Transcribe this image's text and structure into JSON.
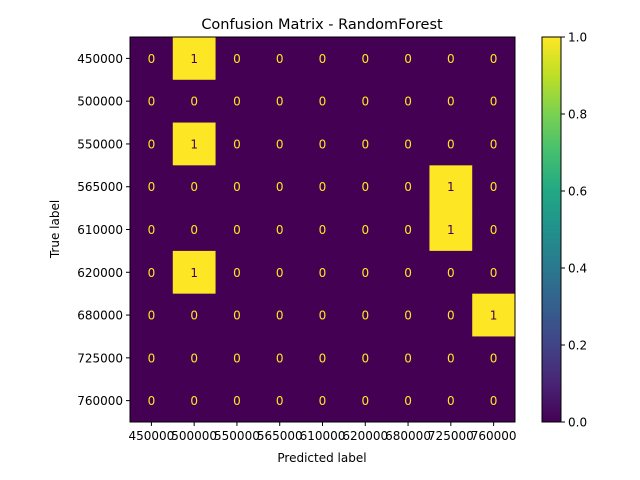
{
  "chart_data": {
    "type": "heatmap",
    "title": "Confusion Matrix - RandomForest",
    "xlabel": "Predicted label",
    "ylabel": "True label",
    "row_labels": [
      "450000",
      "500000",
      "550000",
      "565000",
      "610000",
      "620000",
      "680000",
      "725000",
      "760000"
    ],
    "col_labels": [
      "450000",
      "500000",
      "550000",
      "565000",
      "610000",
      "620000",
      "680000",
      "725000",
      "760000"
    ],
    "matrix": [
      [
        0,
        1,
        0,
        0,
        0,
        0,
        0,
        0,
        0
      ],
      [
        0,
        0,
        0,
        0,
        0,
        0,
        0,
        0,
        0
      ],
      [
        0,
        1,
        0,
        0,
        0,
        0,
        0,
        0,
        0
      ],
      [
        0,
        0,
        0,
        0,
        0,
        0,
        0,
        1,
        0
      ],
      [
        0,
        0,
        0,
        0,
        0,
        0,
        0,
        1,
        0
      ],
      [
        0,
        1,
        0,
        0,
        0,
        0,
        0,
        0,
        0
      ],
      [
        0,
        0,
        0,
        0,
        0,
        0,
        0,
        0,
        1
      ],
      [
        0,
        0,
        0,
        0,
        0,
        0,
        0,
        0,
        0
      ],
      [
        0,
        0,
        0,
        0,
        0,
        0,
        0,
        0,
        0
      ]
    ],
    "colorbar": {
      "range": [
        0,
        1
      ],
      "ticks": [
        "0.0",
        "0.2",
        "0.4",
        "0.6",
        "0.8",
        "1.0"
      ],
      "colormap": "viridis",
      "low_color": "#440154",
      "high_color": "#fde725"
    },
    "grid": false
  }
}
